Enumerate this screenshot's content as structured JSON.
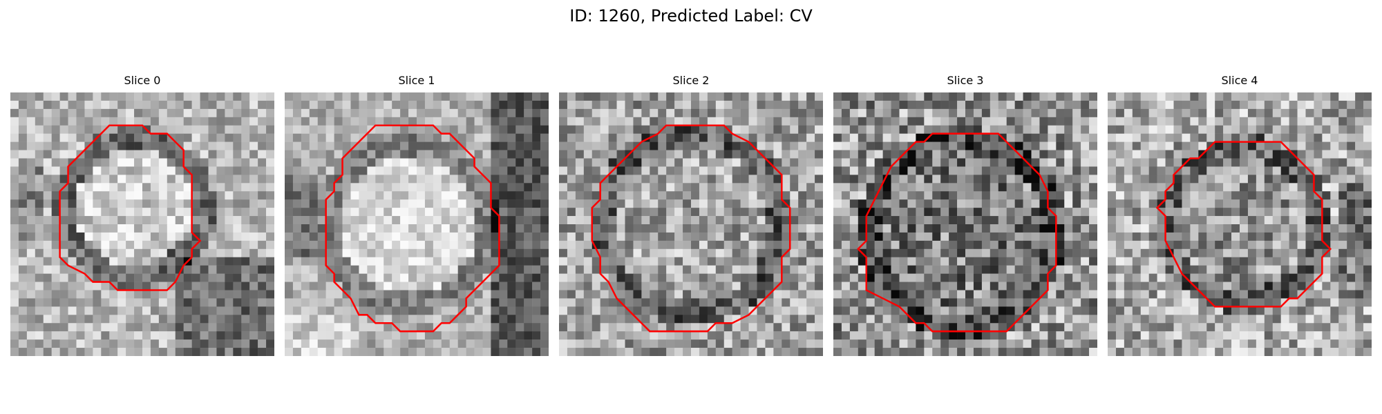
{
  "figure": {
    "title": "ID: 1260, Predicted Label: CV"
  },
  "panels": [
    {
      "title": "Slice 0"
    },
    {
      "title": "Slice 1"
    },
    {
      "title": "Slice 2"
    },
    {
      "title": "Slice 3"
    },
    {
      "title": "Slice 4"
    }
  ],
  "colors": {
    "contour": "#ff0000",
    "background": "#ffffff"
  }
}
